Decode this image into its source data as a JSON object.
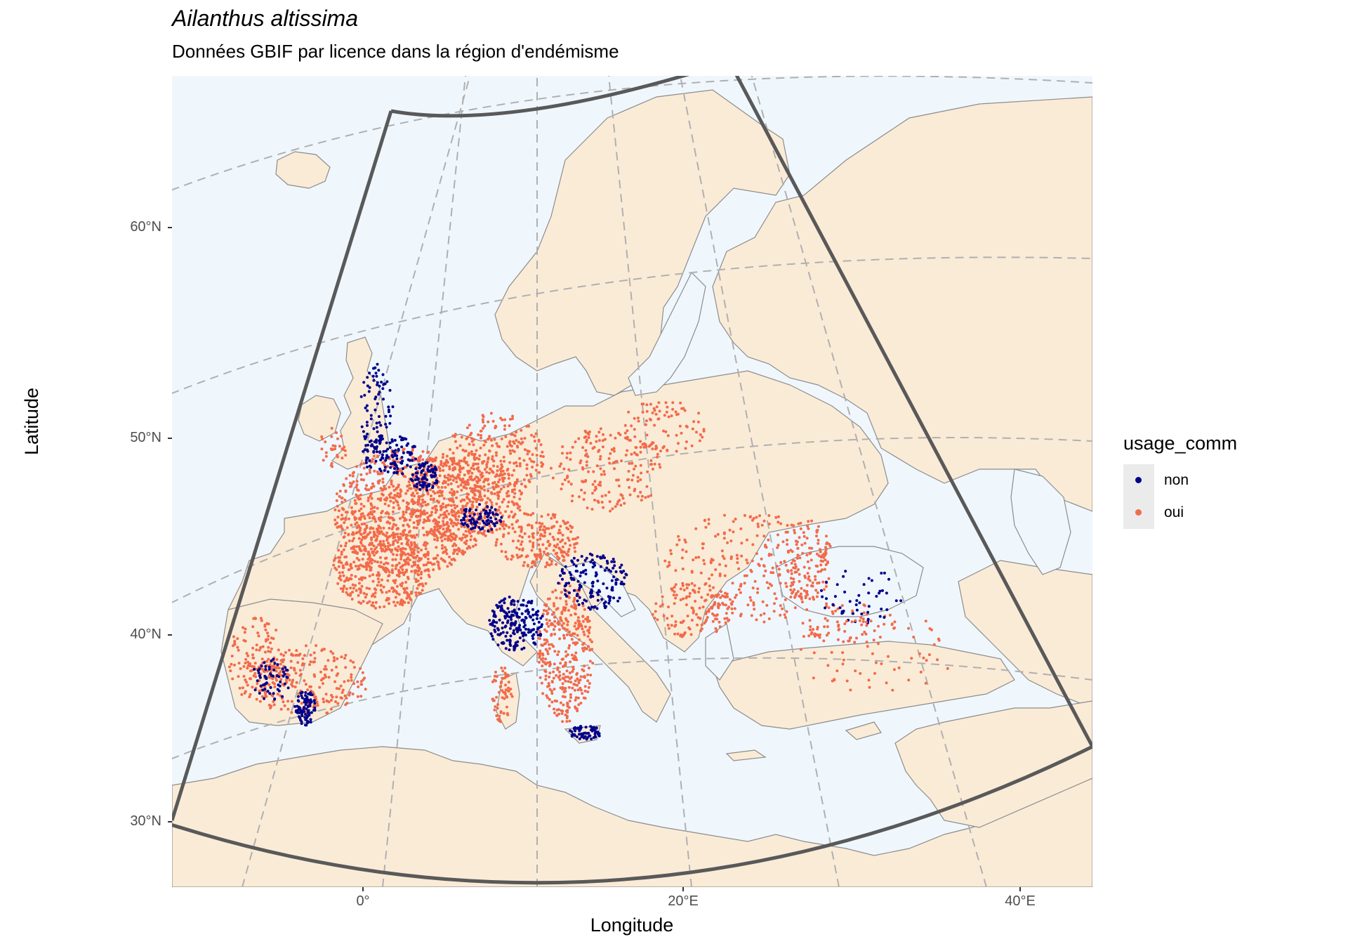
{
  "title": "Ailanthus altissima",
  "subtitle": "Données GBIF par licence dans la région d'endémisme",
  "axes": {
    "xlabel": "Longitude",
    "ylabel": "Latitude",
    "x_ticks": [
      "0°",
      "20°E",
      "40°E"
    ],
    "y_ticks": [
      "60°N",
      "50°N",
      "40°N",
      "30°N"
    ]
  },
  "legend": {
    "title": "usage_comm",
    "entries": [
      {
        "label": "non",
        "color": "#00008b"
      },
      {
        "label": "oui",
        "color": "#f26b4a"
      }
    ]
  },
  "colors": {
    "sea": "#eff7fd",
    "land": "#faebd7",
    "border": "#8c8c8c",
    "region_outline": "#595959",
    "graticule": "#b0b0b0"
  }
}
